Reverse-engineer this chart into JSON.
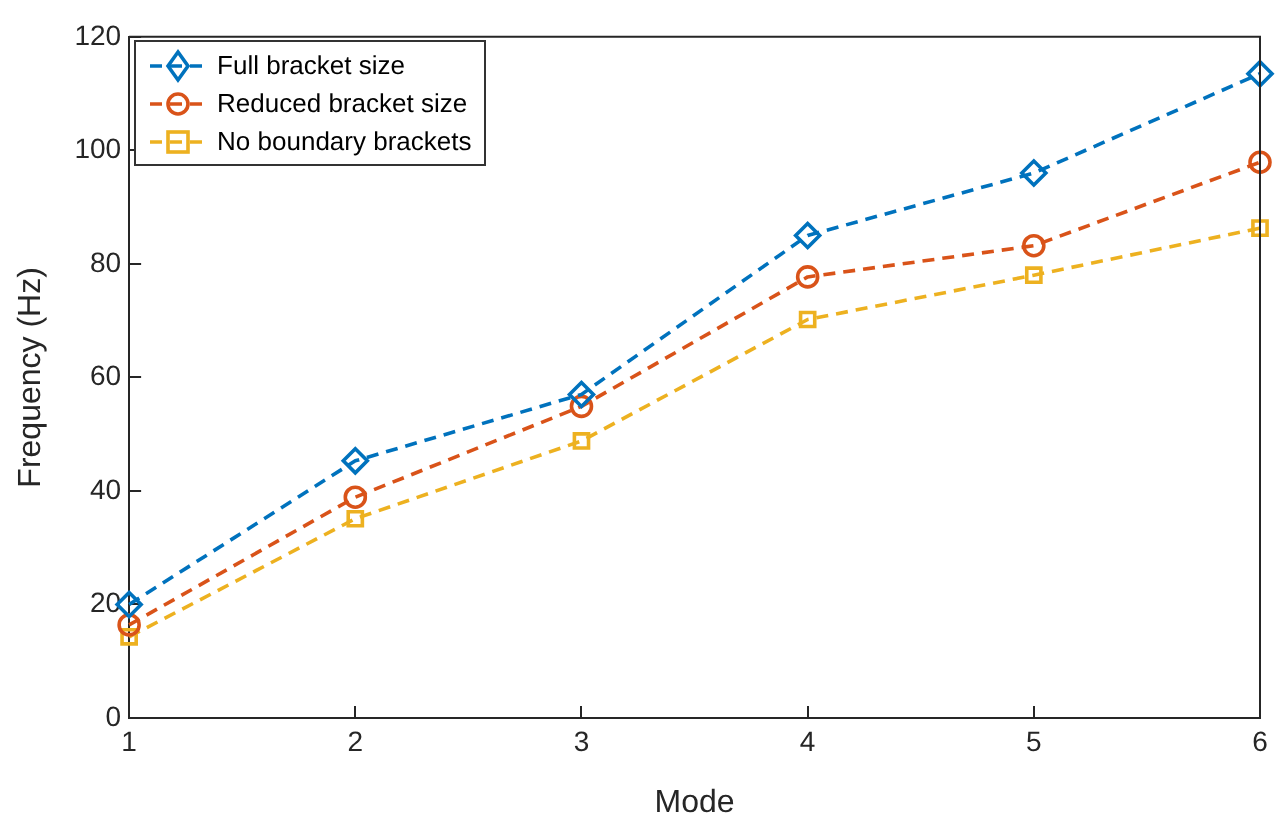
{
  "chart_data": {
    "type": "line",
    "xlabel": "Mode",
    "ylabel": "Frequency (Hz)",
    "x": [
      1,
      2,
      3,
      4,
      5,
      6
    ],
    "series": [
      {
        "name": "Full bracket size",
        "color": "#0072bd",
        "marker": "diamond",
        "values": [
          20,
          45.3,
          57,
          85,
          96,
          113.5
        ]
      },
      {
        "name": "Reduced bracket size",
        "color": "#d95319",
        "marker": "circle",
        "values": [
          16.4,
          38.9,
          54.9,
          77.7,
          83.2,
          97.9
        ]
      },
      {
        "name": "No boundary brackets",
        "color": "#edb120",
        "marker": "square",
        "values": [
          14.3,
          35.1,
          48.8,
          70.2,
          78,
          86.3
        ]
      }
    ],
    "xlim": [
      1,
      6
    ],
    "xticks": [
      1,
      2,
      3,
      4,
      5,
      6
    ],
    "ylim": [
      0,
      120
    ],
    "yticks": [
      0,
      20,
      40,
      60,
      80,
      100,
      120
    ],
    "grid": false,
    "legend": "top left",
    "line_style": "dashed"
  }
}
